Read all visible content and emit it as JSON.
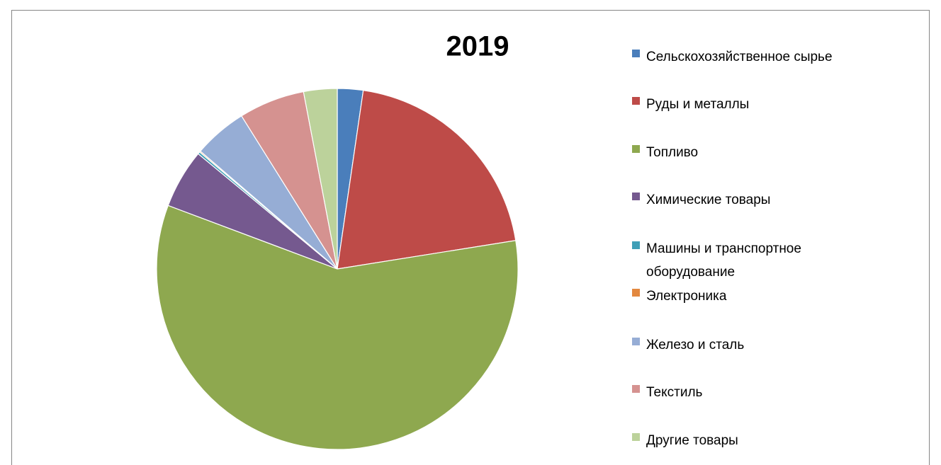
{
  "chart_data": {
    "type": "pie",
    "title": "2019",
    "categories": [
      "Сельскохозяйственное сырье",
      "Руды и металлы",
      "Топливо",
      "Химические товары",
      "Машины и транспортное оборудование",
      "Электроника",
      "Железо и сталь",
      "Текстиль",
      "Другие товары"
    ],
    "values": [
      2.3,
      20.2,
      58.3,
      5.3,
      0.2,
      0.1,
      4.8,
      5.9,
      3.0
    ],
    "colors": [
      "#4a7ebb",
      "#be4b48",
      "#8ea84f",
      "#75598f",
      "#3f9fb7",
      "#e3883f",
      "#96add5",
      "#d59290",
      "#bcd29b"
    ],
    "legend": "right"
  }
}
